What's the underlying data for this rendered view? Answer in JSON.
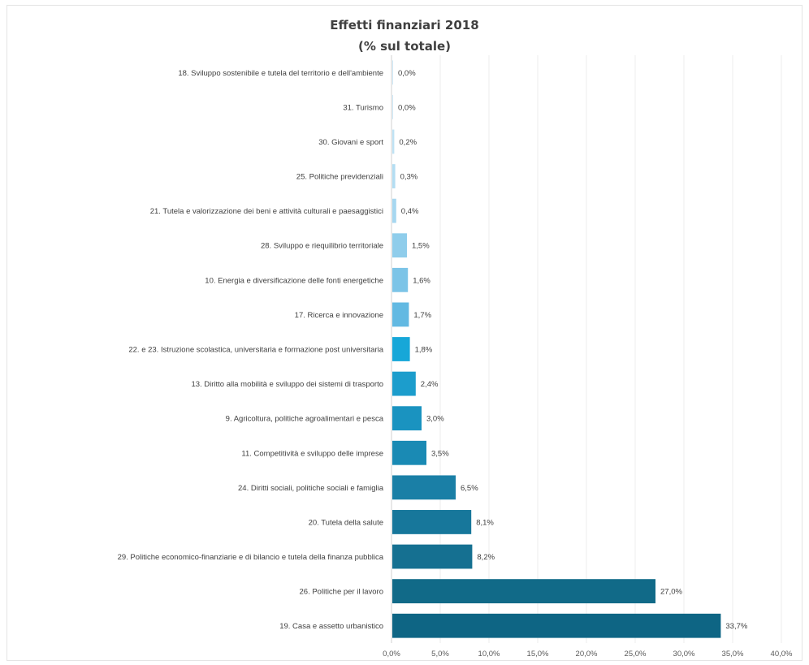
{
  "chart_data": {
    "type": "bar",
    "orientation": "horizontal",
    "title": "Effetti finanziari 2018",
    "subtitle": "(% sul totale)",
    "categories": [
      "18. Sviluppo sostenibile e tutela del territorio e dell'ambiente",
      "31. Turismo",
      "30. Giovani e sport",
      "25. Politiche previdenziali",
      "21. Tutela e valorizzazione dei beni e attività culturali e paesaggistici",
      "28. Sviluppo e riequilibrio territoriale",
      "10. Energia e diversificazione delle fonti energetiche",
      "17. Ricerca e innovazione",
      "22. e 23. Istruzione scolastica, universitaria e formazione post universitaria",
      "13. Diritto alla mobilità e sviluppo dei sistemi di trasporto",
      "9. Agricoltura, politiche agroalimentari e pesca",
      "11. Competitività e sviluppo delle imprese",
      "24. Diritti sociali, politiche sociali e famiglia",
      "20. Tutela della salute",
      "29. Politiche economico-finanziarie e di bilancio e tutela della finanza pubblica",
      "26. Politiche per il lavoro",
      "19. Casa e assetto urbanistico"
    ],
    "values": [
      0.0,
      0.0,
      0.2,
      0.3,
      0.4,
      1.5,
      1.6,
      1.7,
      1.8,
      2.4,
      3.0,
      3.5,
      6.5,
      8.1,
      8.2,
      27.0,
      33.7
    ],
    "value_labels": [
      "0,0%",
      "0,0%",
      "0,2%",
      "0,3%",
      "0,4%",
      "1,5%",
      "1,6%",
      "1,7%",
      "1,8%",
      "2,4%",
      "3,0%",
      "3,5%",
      "6,5%",
      "8,1%",
      "8,2%",
      "27,0%",
      "33,7%"
    ],
    "bar_colors": [
      "#cfe9f6",
      "#cfe9f6",
      "#bfe2f4",
      "#b3ddf2",
      "#a6d7f0",
      "#8fcdeb",
      "#7cc4e7",
      "#62b9e2",
      "#17a7d8",
      "#1c9dcc",
      "#1a93c0",
      "#1a8ab4",
      "#1a7fa6",
      "#17779b",
      "#157091",
      "#116a88",
      "#0e6584"
    ],
    "xlim": [
      0,
      40
    ],
    "xticks": [
      0,
      5,
      10,
      15,
      20,
      25,
      30,
      35,
      40
    ],
    "xtick_labels": [
      "0,0%",
      "5,0%",
      "10,0%",
      "15,0%",
      "20,0%",
      "25,0%",
      "30,0%",
      "35,0%",
      "40,0%"
    ],
    "grid": true,
    "legend": "none"
  }
}
